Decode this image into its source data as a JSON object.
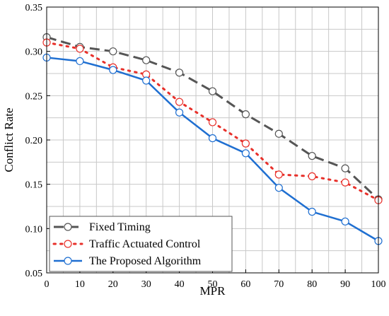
{
  "chart_data": {
    "type": "line",
    "xlabel": "MPR",
    "ylabel": "Conflict Rate",
    "x": [
      0,
      10,
      20,
      30,
      40,
      50,
      60,
      70,
      80,
      90,
      100
    ],
    "xlim": [
      0,
      100
    ],
    "ylim": [
      0.05,
      0.35
    ],
    "xticks": [
      "0",
      "10",
      "20",
      "30",
      "40",
      "50",
      "60",
      "70",
      "80",
      "90",
      "100"
    ],
    "yticks": [
      "0.05",
      "0.10",
      "0.15",
      "0.20",
      "0.25",
      "0.30",
      "0.35"
    ],
    "grid": true,
    "legend_position": "bottom-left",
    "series": [
      {
        "name": "Fixed Timing",
        "values": [
          0.316,
          0.305,
          0.3,
          0.29,
          0.276,
          0.255,
          0.229,
          0.207,
          0.182,
          0.168,
          0.133
        ],
        "color": "#555555",
        "line_style": "dashed",
        "marker": "open-circle"
      },
      {
        "name": "Traffic Actuated Control",
        "values": [
          0.31,
          0.303,
          0.282,
          0.274,
          0.243,
          0.22,
          0.196,
          0.161,
          0.159,
          0.152,
          0.132
        ],
        "color": "#e8302a",
        "line_style": "dotted",
        "marker": "open-circle"
      },
      {
        "name": "The Proposed Algorithm",
        "values": [
          0.293,
          0.289,
          0.279,
          0.267,
          0.231,
          0.202,
          0.185,
          0.146,
          0.119,
          0.108,
          0.086
        ],
        "color": "#1f6fd1",
        "line_style": "solid",
        "marker": "open-circle"
      }
    ]
  }
}
